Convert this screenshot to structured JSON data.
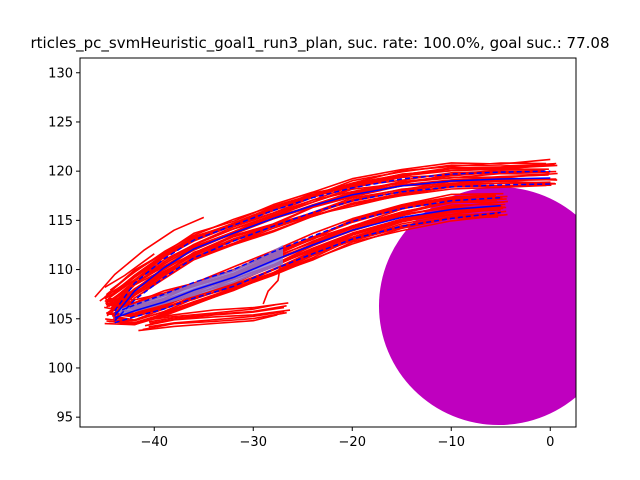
{
  "chart_data": {
    "type": "line",
    "title": "rticles_pc_svmHeuristic_goal1_run3_plan, suc. rate: 100.0%, goal suc.: 77.08",
    "xlabel": "",
    "ylabel": "",
    "xlim": [
      -47.5,
      2.6
    ],
    "ylim": [
      94.0,
      131.5
    ],
    "x_ticks": [
      -40,
      -30,
      -20,
      -10,
      0
    ],
    "y_ticks": [
      95,
      100,
      105,
      110,
      115,
      120,
      125,
      130
    ],
    "grid": false,
    "colors": {
      "particles": "#ff0000",
      "plan": "#0000ff",
      "plan_fill": "#8080e0",
      "goal": "#bf00bf"
    },
    "goal_region": {
      "center": [
        -5.2,
        106.3
      ],
      "radius": 12.1
    },
    "particle_bundles": [
      {
        "count": 26,
        "spread": 1.3,
        "path": [
          [
            -44.5,
            106.5
          ],
          [
            -42,
            108.5
          ],
          [
            -39,
            110.5
          ],
          [
            -36,
            112.2
          ],
          [
            -32,
            113.8
          ],
          [
            -28,
            115.2
          ],
          [
            -24,
            116.6
          ],
          [
            -20,
            117.8
          ],
          [
            -15,
            118.8
          ],
          [
            -10,
            119.4
          ],
          [
            -5,
            119.6
          ],
          [
            0,
            119.7
          ]
        ]
      },
      {
        "count": 26,
        "spread": 1.2,
        "path": [
          [
            -44.5,
            105.8
          ],
          [
            -42,
            105.6
          ],
          [
            -39,
            106.5
          ],
          [
            -36,
            107.6
          ],
          [
            -32,
            108.9
          ],
          [
            -28,
            110.6
          ],
          [
            -24,
            112.3
          ],
          [
            -20,
            113.9
          ],
          [
            -15,
            115.3
          ],
          [
            -10,
            116.3
          ],
          [
            -5,
            116.6
          ]
        ]
      },
      {
        "count": 8,
        "spread": 0.6,
        "path": [
          [
            -41,
            104.4
          ],
          [
            -38,
            104.9
          ],
          [
            -34,
            105.2
          ],
          [
            -30,
            105.5
          ],
          [
            -27,
            106.0
          ]
        ]
      }
    ],
    "particle_outliers": [
      [
        [
          -46,
          107.2
        ],
        [
          -44,
          109.5
        ],
        [
          -41,
          112.0
        ],
        [
          -38,
          114.0
        ],
        [
          -35,
          115.3
        ]
      ],
      [
        [
          -45,
          108.2
        ],
        [
          -43,
          109.4
        ],
        [
          -40,
          111.6
        ]
      ],
      [
        [
          -45.5,
          106.8
        ],
        [
          -44,
          107.9
        ],
        [
          -42,
          108.8
        ]
      ],
      [
        [
          -29,
          106.5
        ],
        [
          -28.5,
          107.8
        ],
        [
          -27.5,
          108.9
        ],
        [
          -27.2,
          110.8
        ]
      ]
    ],
    "plan_solid": [
      [
        [
          -44,
          105.3
        ],
        [
          -42,
          107.8
        ],
        [
          -39,
          110.2
        ],
        [
          -36,
          112.1
        ],
        [
          -32,
          113.7
        ],
        [
          -28,
          115.2
        ],
        [
          -24,
          116.5
        ],
        [
          -20,
          117.6
        ],
        [
          -15,
          118.5
        ],
        [
          -10,
          119.0
        ],
        [
          -5,
          119.2
        ],
        [
          0,
          119.3
        ]
      ],
      [
        [
          -44,
          105.1
        ],
        [
          -42,
          105.8
        ],
        [
          -39,
          106.7
        ],
        [
          -36,
          107.9
        ],
        [
          -32,
          109.2
        ],
        [
          -28,
          110.9
        ],
        [
          -24,
          112.5
        ],
        [
          -20,
          114.0
        ],
        [
          -15,
          115.3
        ],
        [
          -10,
          116.1
        ],
        [
          -5,
          116.5
        ]
      ]
    ],
    "plan_dashed": [
      [
        [
          -44,
          104.8
        ],
        [
          -42,
          106.9
        ],
        [
          -39,
          109.2
        ],
        [
          -36,
          111.2
        ],
        [
          -32,
          112.9
        ],
        [
          -28,
          114.4
        ],
        [
          -24,
          115.8
        ],
        [
          -20,
          117.0
        ],
        [
          -15,
          117.9
        ],
        [
          -10,
          118.4
        ],
        [
          -5,
          118.6
        ],
        [
          0,
          118.7
        ]
      ],
      [
        [
          -44,
          105.8
        ],
        [
          -42,
          108.6
        ],
        [
          -39,
          111.1
        ],
        [
          -36,
          113.0
        ],
        [
          -32,
          114.5
        ],
        [
          -28,
          116.0
        ],
        [
          -24,
          117.3
        ],
        [
          -20,
          118.3
        ],
        [
          -15,
          119.2
        ],
        [
          -10,
          119.7
        ],
        [
          -5,
          119.9
        ],
        [
          0,
          120.0
        ]
      ],
      [
        [
          -44,
          104.6
        ],
        [
          -42,
          105.2
        ],
        [
          -39,
          106.0
        ],
        [
          -36,
          107.1
        ],
        [
          -32,
          108.3
        ],
        [
          -28,
          110.0
        ],
        [
          -24,
          111.6
        ],
        [
          -20,
          113.1
        ],
        [
          -15,
          114.4
        ],
        [
          -10,
          115.2
        ],
        [
          -5,
          115.8
        ]
      ],
      [
        [
          -44,
          105.6
        ],
        [
          -42,
          106.4
        ],
        [
          -39,
          107.5
        ],
        [
          -36,
          108.7
        ],
        [
          -32,
          110.0
        ],
        [
          -28,
          111.8
        ],
        [
          -24,
          113.4
        ],
        [
          -20,
          114.9
        ],
        [
          -15,
          116.2
        ],
        [
          -10,
          117.0
        ],
        [
          -5,
          117.3
        ]
      ]
    ],
    "plan_fill_band": {
      "upper": [
        [
          -43.5,
          106.0
        ],
        [
          -40,
          107.2
        ],
        [
          -36,
          108.6
        ],
        [
          -32,
          110.0
        ],
        [
          -29,
          111.4
        ],
        [
          -27,
          112.5
        ]
      ],
      "lower": [
        [
          -43.5,
          105.3
        ],
        [
          -40,
          106.2
        ],
        [
          -36,
          107.3
        ],
        [
          -32,
          108.6
        ],
        [
          -29,
          109.8
        ],
        [
          -27,
          110.5
        ]
      ]
    }
  }
}
